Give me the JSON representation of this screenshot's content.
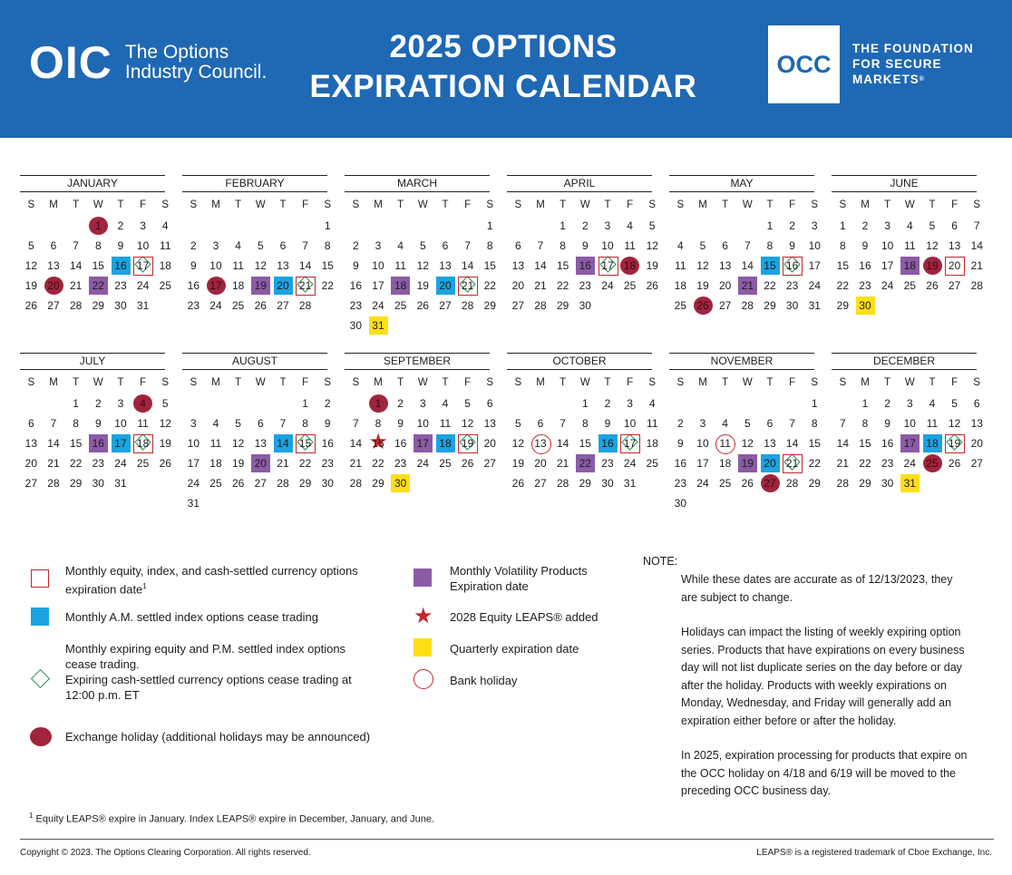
{
  "header": {
    "oic_mark": "OIC",
    "oic_line1": "The Options",
    "oic_line2": "Industry Council.",
    "title_line1": "2025 OPTIONS",
    "title_line2": "EXPIRATION CALENDAR",
    "occ_mark": "OCC",
    "occ_tag1": "THE FOUNDATION",
    "occ_tag2": "FOR SECURE",
    "occ_tag3": "MARKETS"
  },
  "weekdays": [
    "S",
    "M",
    "T",
    "W",
    "T",
    "F",
    "S"
  ],
  "months": [
    {
      "name": "JANUARY",
      "start": 3,
      "days": 31,
      "marks": {
        "1": "exch",
        "16": "blue",
        "17": "diamond",
        "20": "exch",
        "22": "purple"
      }
    },
    {
      "name": "FEBRUARY",
      "start": 6,
      "days": 28,
      "marks": {
        "17": "exch",
        "19": "purple",
        "20": "blue",
        "21": "diamond"
      }
    },
    {
      "name": "MARCH",
      "start": 6,
      "days": 31,
      "marks": {
        "18": "purple",
        "20": "blue",
        "21": "diamond",
        "31": "yellow"
      }
    },
    {
      "name": "APRIL",
      "start": 2,
      "days": 30,
      "marks": {
        "16": "purple",
        "17": "diamond",
        "18": "exch"
      }
    },
    {
      "name": "MAY",
      "start": 4,
      "days": 31,
      "marks": {
        "15": "blue",
        "16": "diamond",
        "21": "purple",
        "26": "exch"
      }
    },
    {
      "name": "JUNE",
      "start": 0,
      "days": 30,
      "marks": {
        "18": "purple",
        "19": "exch",
        "20": "redsq",
        "30": "yellow"
      }
    },
    {
      "name": "JULY",
      "start": 2,
      "days": 31,
      "marks": {
        "4": "exch",
        "16": "purple",
        "17": "blue",
        "18": "diamond"
      }
    },
    {
      "name": "AUGUST",
      "start": 5,
      "days": 31,
      "marks": {
        "14": "blue",
        "15": "diamond",
        "20": "purple"
      }
    },
    {
      "name": "SEPTEMBER",
      "start": 1,
      "days": 30,
      "marks": {
        "1": "exch",
        "15": "star",
        "17": "purple",
        "18": "blue",
        "19": "diamond",
        "30": "yellow"
      }
    },
    {
      "name": "OCTOBER",
      "start": 3,
      "days": 31,
      "marks": {
        "13": "bank",
        "16": "blue",
        "17": "diamond",
        "22": "purple"
      }
    },
    {
      "name": "NOVEMBER",
      "start": 6,
      "days": 30,
      "marks": {
        "11": "bank",
        "19": "purple",
        "20": "blue",
        "21": "diamond",
        "27": "exch"
      }
    },
    {
      "name": "DECEMBER",
      "start": 1,
      "days": 31,
      "marks": {
        "17": "purple",
        "18": "blue",
        "19": "diamond",
        "25": "exch",
        "31": "yellow"
      }
    }
  ],
  "legend": {
    "monthly_equity": "Monthly equity, index, and cash-settled currency options expiration date",
    "monthly_equity_sup": "1",
    "am_settled": "Monthly A.M. settled index options cease trading",
    "pm_settled_1": "Monthly expiring equity and P.M. settled index options cease trading.",
    "pm_settled_2": "Expiring cash-settled currency options cease trading at 12:00 p.m. ET",
    "exchange_holiday": "Exchange holiday (additional holidays may be announced)",
    "volatility": "Monthly Volatility Products Expiration date",
    "leaps_added": "2028 Equity LEAPS® added",
    "quarterly": "Quarterly expiration date",
    "bank_holiday": "Bank holiday"
  },
  "note": {
    "heading": "NOTE:",
    "p1": "While these dates are accurate as of 12/13/2023, they are subject to change.",
    "p2": "Holidays can impact the listing of weekly expiring option series. Products that have expirations on every business day will not list duplicate series on the day before or day after the holiday. Products with weekly expirations on Monday, Wednesday, and Friday will generally add an expiration either before or after the holiday.",
    "p3": "In 2025, expiration processing for products that expire on the OCC holiday on 4/18 and 6/19 will be moved to the preceding OCC business day."
  },
  "footnote": {
    "marker": "1",
    "text": "Equity LEAPS® expire in January. Index LEAPS® expire in December, January, and June."
  },
  "footer": {
    "copyright": "Copyright © 2023. The Options Clearing Corporation. All rights reserved.",
    "trademark": "LEAPS® is a registered trademark of Cboe Exchange, Inc."
  },
  "colors": {
    "header_blue": "#1f68b3",
    "am_blue": "#1ba3e1",
    "volatility_purple": "#8c5ba6",
    "quarterly_yellow": "#ffde17",
    "holiday_maroon": "#a0243d",
    "expiry_red": "#c1272d",
    "pm_green": "#2e8b57"
  }
}
